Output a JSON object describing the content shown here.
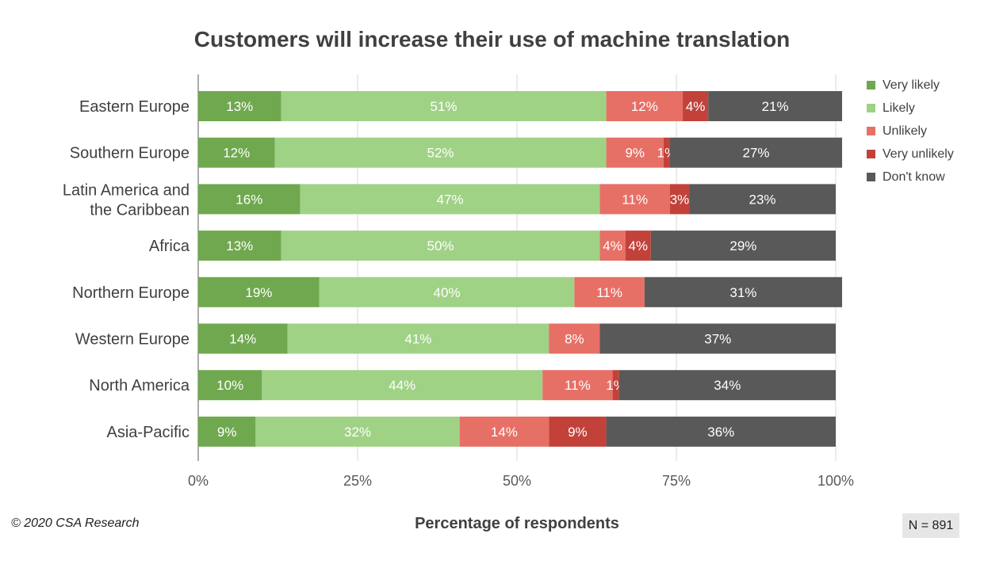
{
  "title": "Customers will increase their use of machine translation",
  "copyright": "© 2020 CSA Research",
  "sample_size": "N = 891",
  "colors": {
    "very_likely": "#70a84f",
    "likely": "#a0d286",
    "unlikely": "#e77066",
    "very_unlikely": "#c2423a",
    "dont_know": "#595959"
  },
  "chart_data": {
    "type": "bar",
    "orientation": "horizontal",
    "stacked": true,
    "title": "Customers will increase their use of machine translation",
    "xlabel": "Percentage of respondents",
    "ylabel": "",
    "xlim": [
      0,
      100
    ],
    "x_ticks": [
      "0%",
      "25%",
      "50%",
      "75%",
      "100%"
    ],
    "grid": true,
    "legend_position": "right",
    "categories": [
      "Eastern Europe",
      "Southern Europe",
      "Latin America and the Caribbean",
      "Africa",
      "Northern Europe",
      "Western Europe",
      "North America",
      "Asia-Pacific"
    ],
    "series": [
      {
        "name": "Very likely",
        "color": "#70a84f",
        "values": [
          13,
          12,
          16,
          13,
          19,
          14,
          10,
          9
        ]
      },
      {
        "name": "Likely",
        "color": "#a0d286",
        "values": [
          51,
          52,
          47,
          50,
          40,
          41,
          44,
          32
        ]
      },
      {
        "name": "Unlikely",
        "color": "#e77066",
        "values": [
          12,
          9,
          11,
          4,
          11,
          8,
          11,
          14
        ]
      },
      {
        "name": "Very unlikely",
        "color": "#c2423a",
        "values": [
          4,
          1,
          3,
          4,
          0,
          0,
          1,
          9
        ]
      },
      {
        "name": "Don't know",
        "color": "#595959",
        "values": [
          21,
          27,
          23,
          29,
          31,
          37,
          34,
          36
        ]
      }
    ]
  }
}
